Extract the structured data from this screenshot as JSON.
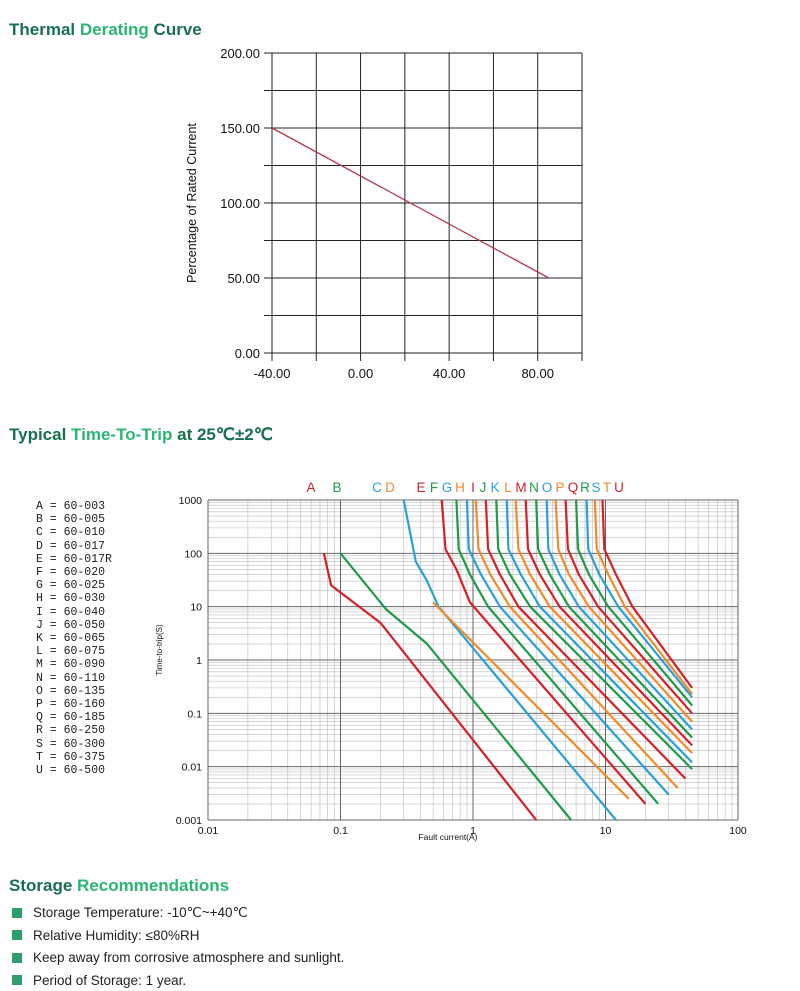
{
  "headings": {
    "thermal": [
      "Thermal ",
      "Derating ",
      "Curve"
    ],
    "ttt": [
      "Typical ",
      "Time-To-Trip ",
      "at 25℃±2℃"
    ],
    "storage": [
      "Storage ",
      "Recommendations"
    ]
  },
  "colors": {
    "heading_dark": "#1a6f4e",
    "heading_light": "#2bb673",
    "derating_line": "#b03a4a",
    "bullet": "#2e9e6b",
    "red": "#d42027",
    "green": "#1f9a48",
    "blue": "#2aa0d8",
    "orange": "#f08b2a"
  },
  "chart_data": [
    {
      "type": "line",
      "ylabel": "Percentage of Rated Current",
      "xlabel": "",
      "x_ticks": [
        "-40.00",
        "0.00",
        "40.00",
        "80.00"
      ],
      "y_ticks": [
        "0.00",
        "50.00",
        "100.00",
        "150.00",
        "200.00"
      ],
      "xlim": [
        -40,
        100
      ],
      "ylim": [
        0,
        200
      ],
      "grid": true,
      "series": [
        {
          "x": [
            -40,
            85
          ],
          "y": [
            150,
            50
          ]
        }
      ]
    },
    {
      "type": "line",
      "xlabel": "Fault current(A)",
      "ylabel": "Time-to-trip(S)",
      "x_scale": "log",
      "y_scale": "log",
      "xlim": [
        0.01,
        100
      ],
      "ylim": [
        0.001,
        1000
      ],
      "x_ticks": [
        "0.01",
        "0.1",
        "1",
        "10",
        "100"
      ],
      "y_ticks": [
        "0.001",
        "0.01",
        "0.1",
        "1",
        "10",
        "100",
        "1000"
      ],
      "grid": true,
      "series": [
        {
          "name": "A",
          "color": "#d42027",
          "points": [
            [
              0.075,
              100
            ],
            [
              0.085,
              25
            ],
            [
              0.2,
              5
            ],
            [
              3,
              0.001
            ]
          ]
        },
        {
          "name": "B",
          "color": "#1f9a48",
          "points": [
            [
              0.1,
              100
            ],
            [
              0.22,
              9
            ],
            [
              0.45,
              2
            ],
            [
              5.5,
              0.001
            ]
          ]
        },
        {
          "name": "C",
          "color": "#2aa0d8",
          "points": [
            [
              0.3,
              1000
            ],
            [
              0.37,
              70
            ],
            [
              0.45,
              30
            ],
            [
              0.55,
              10
            ],
            [
              12,
              0.001
            ]
          ]
        },
        {
          "name": "D",
          "color": "#f08b2a",
          "points": [
            [
              0.5,
              12
            ],
            [
              15,
              0.0025
            ]
          ]
        },
        {
          "name": "E",
          "color": "#d42027",
          "points": [
            [
              0.58,
              1000
            ],
            [
              0.62,
              120
            ],
            [
              0.75,
              50
            ],
            [
              0.95,
              12
            ],
            [
              20,
              0.002
            ]
          ]
        },
        {
          "name": "F",
          "color": "#1f9a48",
          "points": [
            [
              0.75,
              1000
            ],
            [
              0.78,
              120
            ],
            [
              0.95,
              40
            ],
            [
              1.3,
              10
            ],
            [
              25,
              0.002
            ]
          ]
        },
        {
          "name": "G",
          "color": "#2aa0d8",
          "points": [
            [
              0.9,
              1000
            ],
            [
              0.93,
              120
            ],
            [
              1.15,
              40
            ],
            [
              1.6,
              10
            ],
            [
              30,
              0.003
            ]
          ]
        },
        {
          "name": "H",
          "color": "#f08b2a",
          "points": [
            [
              1.05,
              1000
            ],
            [
              1.1,
              120
            ],
            [
              1.35,
              40
            ],
            [
              1.9,
              10
            ],
            [
              35,
              0.004
            ]
          ]
        },
        {
          "name": "I",
          "color": "#d42027",
          "points": [
            [
              1.25,
              1000
            ],
            [
              1.3,
              120
            ],
            [
              1.6,
              40
            ],
            [
              2.2,
              10
            ],
            [
              40,
              0.006
            ]
          ]
        },
        {
          "name": "J",
          "color": "#1f9a48",
          "points": [
            [
              1.5,
              1000
            ],
            [
              1.55,
              120
            ],
            [
              1.9,
              40
            ],
            [
              2.7,
              10
            ],
            [
              45,
              0.009
            ]
          ]
        },
        {
          "name": "K",
          "color": "#2aa0d8",
          "points": [
            [
              1.8,
              1000
            ],
            [
              1.85,
              120
            ],
            [
              2.3,
              40
            ],
            [
              3.2,
              10
            ],
            [
              45,
              0.012
            ]
          ]
        },
        {
          "name": "L",
          "color": "#f08b2a",
          "points": [
            [
              2.1,
              1000
            ],
            [
              2.2,
              120
            ],
            [
              2.7,
              40
            ],
            [
              3.8,
              10
            ],
            [
              45,
              0.018
            ]
          ]
        },
        {
          "name": "M",
          "color": "#d42027",
          "points": [
            [
              2.5,
              1000
            ],
            [
              2.6,
              120
            ],
            [
              3.2,
              40
            ],
            [
              4.5,
              10
            ],
            [
              45,
              0.025
            ]
          ]
        },
        {
          "name": "N",
          "color": "#1f9a48",
          "points": [
            [
              3,
              1000
            ],
            [
              3.1,
              120
            ],
            [
              3.8,
              40
            ],
            [
              5.3,
              10
            ],
            [
              45,
              0.035
            ]
          ]
        },
        {
          "name": "O",
          "color": "#2aa0d8",
          "points": [
            [
              3.6,
              1000
            ],
            [
              3.7,
              120
            ],
            [
              4.5,
              40
            ],
            [
              6.3,
              10
            ],
            [
              45,
              0.05
            ]
          ]
        },
        {
          "name": "P",
          "color": "#f08b2a",
          "points": [
            [
              4.2,
              1000
            ],
            [
              4.4,
              120
            ],
            [
              5.3,
              40
            ],
            [
              7.5,
              10
            ],
            [
              45,
              0.07
            ]
          ]
        },
        {
          "name": "Q",
          "color": "#d42027",
          "points": [
            [
              5,
              1000
            ],
            [
              5.2,
              120
            ],
            [
              6.3,
              40
            ],
            [
              8.8,
              10
            ],
            [
              45,
              0.1
            ]
          ]
        },
        {
          "name": "R",
          "color": "#1f9a48",
          "points": [
            [
              6,
              1000
            ],
            [
              6.2,
              120
            ],
            [
              7.5,
              40
            ],
            [
              10.5,
              10
            ],
            [
              45,
              0.14
            ]
          ]
        },
        {
          "name": "S",
          "color": "#2aa0d8",
          "points": [
            [
              7.2,
              1000
            ],
            [
              7.4,
              120
            ],
            [
              9,
              40
            ],
            [
              12.5,
              10
            ],
            [
              45,
              0.2
            ]
          ]
        },
        {
          "name": "T",
          "color": "#f08b2a",
          "points": [
            [
              8.3,
              1000
            ],
            [
              8.6,
              120
            ],
            [
              10.5,
              40
            ],
            [
              14,
              10
            ],
            [
              45,
              0.23
            ]
          ]
        },
        {
          "name": "U",
          "color": "#d42027",
          "points": [
            [
              9.5,
              1000
            ],
            [
              9.8,
              120
            ],
            [
              12,
              40
            ],
            [
              16,
              10
            ],
            [
              45,
              0.3
            ]
          ]
        }
      ]
    }
  ],
  "legend_top": [
    {
      "letter": "A",
      "color": "#d42027"
    },
    {
      "letter": "B",
      "color": "#1f9a48"
    },
    {
      "letter": "C",
      "color": "#2aa0d8"
    },
    {
      "letter": "D",
      "color": "#f08b2a"
    },
    {
      "letter": "E",
      "color": "#d42027"
    },
    {
      "letter": "F",
      "color": "#1f9a48"
    },
    {
      "letter": "G",
      "color": "#2aa0d8"
    },
    {
      "letter": "H",
      "color": "#f08b2a"
    },
    {
      "letter": "I",
      "color": "#d42027"
    },
    {
      "letter": "J",
      "color": "#1f9a48"
    },
    {
      "letter": "K",
      "color": "#2aa0d8"
    },
    {
      "letter": "L",
      "color": "#f08b2a"
    },
    {
      "letter": "M",
      "color": "#d42027"
    },
    {
      "letter": "N",
      "color": "#1f9a48"
    },
    {
      "letter": "O",
      "color": "#2aa0d8"
    },
    {
      "letter": "P",
      "color": "#f08b2a"
    },
    {
      "letter": "Q",
      "color": "#d42027"
    },
    {
      "letter": "R",
      "color": "#1f9a48"
    },
    {
      "letter": "S",
      "color": "#2aa0d8"
    },
    {
      "letter": "T",
      "color": "#f08b2a"
    },
    {
      "letter": "U",
      "color": "#d42027"
    }
  ],
  "legend_list": [
    "A = 60-003",
    "B = 60-005",
    "C = 60-010",
    "D = 60-017",
    "E = 60-017R",
    "F = 60-020",
    "G = 60-025",
    "H = 60-030",
    "I = 60-040",
    "J = 60-050",
    "K = 60-065",
    "L = 60-075",
    "M = 60-090",
    "N = 60-110",
    "O = 60-135",
    "P = 60-160",
    "Q = 60-185",
    "R = 60-250",
    "S = 60-300",
    "T = 60-375",
    "U = 60-500"
  ],
  "storage_items": [
    "Storage Temperature: -10℃~+40℃",
    "Relative Humidity: ≤80%RH",
    "Keep away from corrosive atmosphere and sunlight.",
    "Period of Storage: 1 year."
  ]
}
